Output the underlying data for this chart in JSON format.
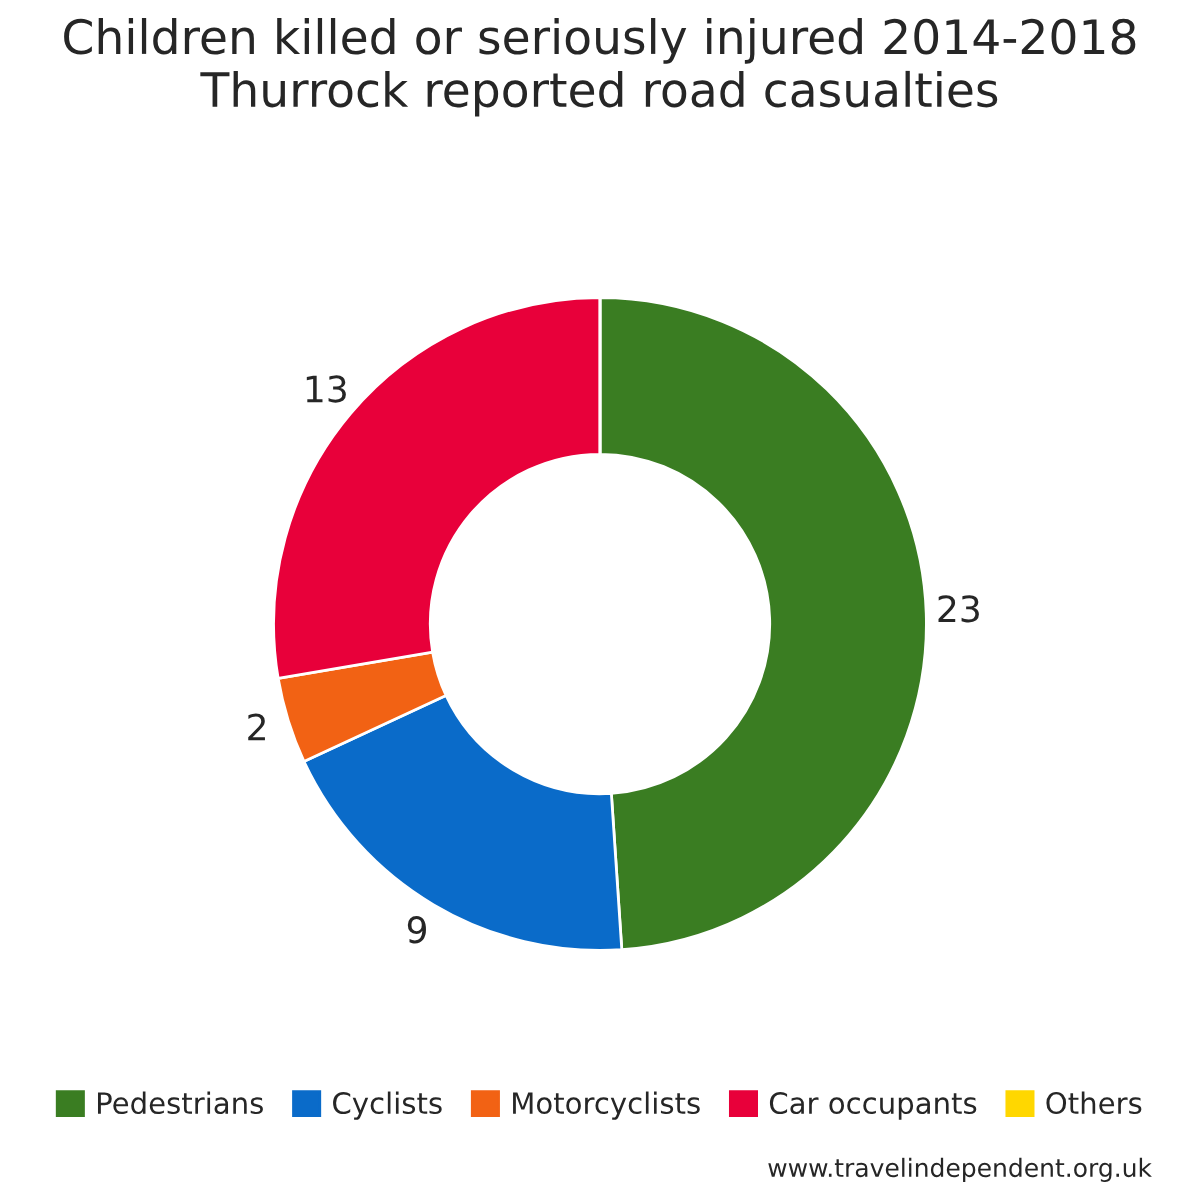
{
  "chart_data": {
    "type": "donut",
    "title": "Children killed or seriously injured 2014-2018\nThurrock reported road casualties",
    "categories": [
      "Pedestrians",
      "Cyclists",
      "Motorcyclists",
      "Car occupants",
      "Others"
    ],
    "values": [
      23,
      9,
      2,
      13,
      0
    ],
    "value_labels": [
      "23",
      "9",
      "2",
      "13",
      null
    ],
    "colors": [
      "#3a7d22",
      "#0a6bc9",
      "#f26214",
      "#e8003a",
      "#ffd700"
    ],
    "legend": "bottom",
    "annotations": [
      "www.travelindependent.org.uk"
    ]
  }
}
